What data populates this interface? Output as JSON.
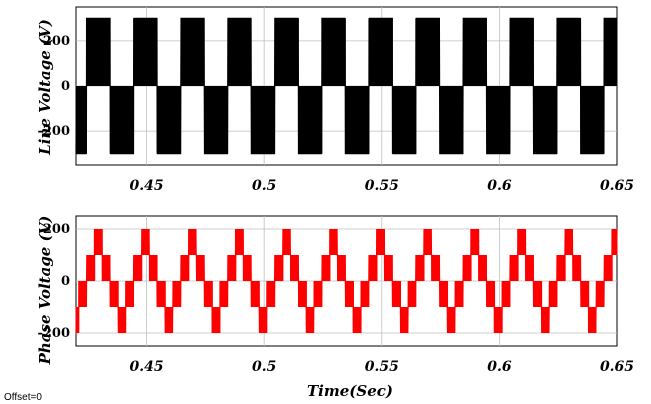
{
  "chart_data": [
    {
      "type": "line",
      "ylabel": "Line Voltage (V)",
      "xlabel": "",
      "xlim": [
        0.42,
        0.65
      ],
      "ylim": [
        -350,
        350
      ],
      "xticks": [
        0.45,
        0.5,
        0.55,
        0.6,
        0.65
      ],
      "xtick_labels": [
        "0.45",
        "0.5",
        "0.55",
        "0.6",
        "0.65"
      ],
      "yticks": [
        200,
        0,
        -200
      ],
      "ytick_labels": [
        "200",
        "0",
        "-200"
      ],
      "grid": true,
      "color": "#000000",
      "waveform": "PWM line-to-line, two-level ±300 V",
      "amplitude": 300,
      "fundamental_period": 0.02,
      "phase": 0.0045
    },
    {
      "type": "line",
      "ylabel": "Phase Voltage (V)",
      "xlabel": "Time(Sec)",
      "xlim": [
        0.42,
        0.65
      ],
      "ylim": [
        -250,
        250
      ],
      "xticks": [
        0.45,
        0.5,
        0.55,
        0.6,
        0.65
      ],
      "xtick_labels": [
        "0.45",
        "0.5",
        "0.55",
        "0.6",
        "0.65"
      ],
      "yticks": [
        200,
        0,
        -200
      ],
      "ytick_labels": [
        "200",
        "0",
        "-200"
      ],
      "grid": true,
      "color": "#ff0000",
      "waveform": "PWM phase, stepped levels 0, ±100, ±200 V",
      "levels": [
        -200,
        -100,
        0,
        100,
        200
      ],
      "fundamental_period": 0.02,
      "phase": 0.0045
    }
  ],
  "footer": {
    "offset_text": "Offset=0"
  }
}
